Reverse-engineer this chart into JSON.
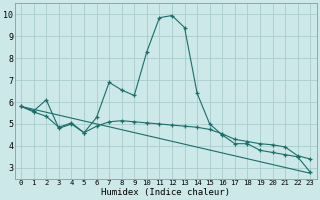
{
  "xlabel": "Humidex (Indice chaleur)",
  "bg_color": "#cce8e8",
  "grid_color": "#aacccc",
  "line_color": "#1a6e6a",
  "xlim": [
    -0.5,
    23.5
  ],
  "ylim": [
    2.5,
    10.5
  ],
  "xticks": [
    0,
    1,
    2,
    3,
    4,
    5,
    6,
    7,
    8,
    9,
    10,
    11,
    12,
    13,
    14,
    15,
    16,
    17,
    18,
    19,
    20,
    21,
    22,
    23
  ],
  "yticks": [
    3,
    4,
    5,
    6,
    7,
    8,
    9,
    10
  ],
  "series": [
    {
      "x": [
        0,
        1,
        2,
        3,
        4,
        5,
        6,
        7,
        8,
        9,
        10,
        11,
        12,
        13,
        14,
        15,
        16,
        17,
        18,
        19,
        20,
        21,
        22,
        23
      ],
      "y": [
        5.8,
        5.6,
        6.1,
        4.8,
        5.0,
        4.6,
        5.3,
        6.9,
        6.55,
        6.3,
        8.3,
        9.85,
        9.95,
        9.4,
        6.4,
        5.0,
        4.5,
        4.1,
        4.1,
        3.8,
        3.7,
        3.6,
        3.5,
        2.8
      ],
      "marker": true
    },
    {
      "x": [
        0,
        23
      ],
      "y": [
        5.8,
        2.75
      ],
      "marker": false
    },
    {
      "x": [
        0,
        1,
        2,
        3,
        4,
        5,
        6,
        7,
        8,
        9,
        10,
        11,
        12,
        13,
        14,
        15,
        16,
        17,
        18,
        19,
        20,
        21,
        22,
        23
      ],
      "y": [
        5.8,
        5.55,
        5.35,
        4.85,
        5.05,
        4.6,
        4.9,
        5.1,
        5.15,
        5.1,
        5.05,
        5.0,
        4.95,
        4.9,
        4.85,
        4.75,
        4.55,
        4.3,
        4.2,
        4.1,
        4.05,
        3.95,
        3.55,
        3.4
      ],
      "marker": true
    }
  ]
}
